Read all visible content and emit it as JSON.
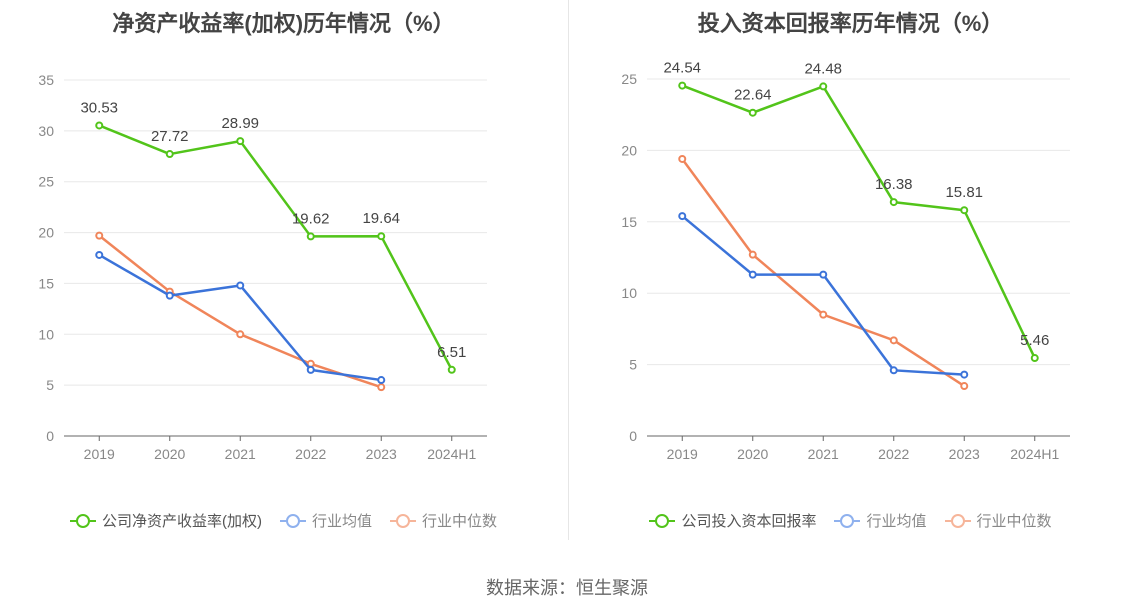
{
  "chart_data": [
    {
      "type": "line",
      "title": "净资产收益率(加权)历年情况（%）",
      "categories": [
        "2019",
        "2020",
        "2021",
        "2022",
        "2023",
        "2024H1"
      ],
      "ylim": [
        0,
        35
      ],
      "yticks": [
        0,
        5,
        10,
        15,
        20,
        25,
        30,
        35
      ],
      "grid": true,
      "legend_position": "bottom",
      "series": [
        {
          "name": "公司净资产收益率(加权)",
          "color": "#52c41a",
          "values": [
            30.53,
            27.72,
            28.99,
            19.62,
            19.64,
            6.51
          ],
          "labels": [
            "30.53",
            "27.72",
            "28.99",
            "19.62",
            "19.64",
            "6.51"
          ]
        },
        {
          "name": "行业均值",
          "color": "#3b73d9",
          "values": [
            17.8,
            13.8,
            14.8,
            6.5,
            5.5,
            null
          ]
        },
        {
          "name": "行业中位数",
          "color": "#f0855a",
          "values": [
            19.7,
            14.2,
            10.0,
            7.1,
            4.8,
            null
          ]
        }
      ]
    },
    {
      "type": "line",
      "title": "投入资本回报率历年情况（%）",
      "categories": [
        "2019",
        "2020",
        "2021",
        "2022",
        "2023",
        "2024H1"
      ],
      "ylim": [
        0,
        25
      ],
      "yticks": [
        0,
        5,
        10,
        15,
        20,
        25
      ],
      "grid": true,
      "legend_position": "bottom",
      "series": [
        {
          "name": "公司投入资本回报率",
          "color": "#52c41a",
          "values": [
            24.54,
            22.64,
            24.48,
            16.38,
            15.81,
            5.46
          ],
          "labels": [
            "24.54",
            "22.64",
            "24.48",
            "16.38",
            "15.81",
            "5.46"
          ]
        },
        {
          "name": "行业均值",
          "color": "#3b73d9",
          "values": [
            15.4,
            11.3,
            11.3,
            4.6,
            4.3,
            null
          ]
        },
        {
          "name": "行业中位数",
          "color": "#f0855a",
          "values": [
            19.4,
            12.7,
            8.5,
            6.7,
            3.5,
            null
          ]
        }
      ]
    }
  ],
  "legend_colors": {
    "company": "#52c41a",
    "industry_mean": "#8fb1ee",
    "industry_median": "#f6b59a"
  },
  "source_text": "数据来源：恒生聚源"
}
